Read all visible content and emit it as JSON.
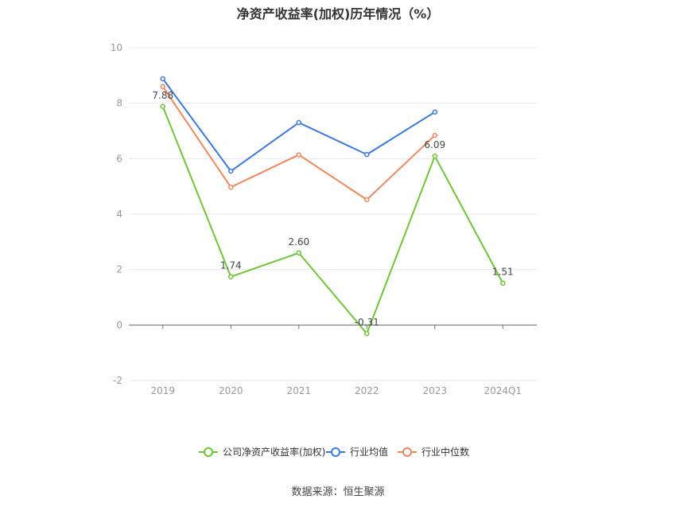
{
  "title": "净资产收益率(加权)历年情况（%）",
  "source": "数据来源：恒生聚源",
  "chart_data": {
    "type": "line",
    "title": "净资产收益率(加权)历年情况（%）",
    "categories": [
      "2019",
      "2020",
      "2021",
      "2022",
      "2023",
      "2024Q1"
    ],
    "ylim": [
      -2,
      10
    ],
    "yticks": [
      -2,
      0,
      2,
      4,
      6,
      8,
      10
    ],
    "grid": true,
    "legend_position": "bottom",
    "series": [
      {
        "name": "公司净资产收益率(加权)",
        "color": "#6dc634",
        "values": [
          7.88,
          1.74,
          2.6,
          -0.31,
          6.09,
          1.51
        ],
        "labels": [
          "7.88",
          "1.74",
          "2.60",
          "-0.31",
          "6.09",
          "1.51"
        ]
      },
      {
        "name": "行业均值",
        "color": "#3b78e0",
        "values": [
          8.88,
          5.55,
          7.3,
          6.15,
          7.68,
          null
        ]
      },
      {
        "name": "行业中位数",
        "color": "#f0875d",
        "values": [
          8.6,
          4.97,
          6.14,
          4.52,
          6.84,
          null
        ]
      }
    ]
  }
}
